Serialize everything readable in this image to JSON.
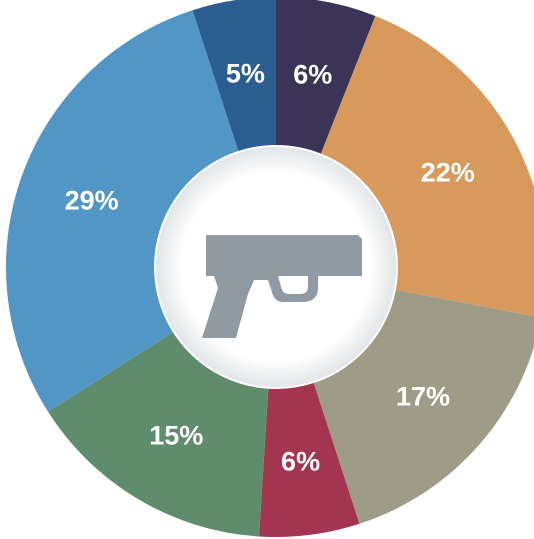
{
  "chart_data": {
    "type": "pie",
    "variant": "donut",
    "center_icon": "handgun-icon",
    "slices": [
      {
        "label": "6%",
        "value": 6,
        "color": "#3b3457"
      },
      {
        "label": "22%",
        "value": 22,
        "color": "#d7995c"
      },
      {
        "label": "17%",
        "value": 17,
        "color": "#9e9c87"
      },
      {
        "label": "6%",
        "value": 6,
        "color": "#a33550"
      },
      {
        "label": "15%",
        "value": 15,
        "color": "#5f8c6c"
      },
      {
        "label": "29%",
        "value": 29,
        "color": "#5196c4"
      },
      {
        "label": "5%",
        "value": 5,
        "color": "#2b5d91"
      }
    ],
    "start_angle_deg": 0,
    "direction": "clockwise",
    "center_disk_color": "#ffffff",
    "icon_color": "#8f9aa3"
  }
}
